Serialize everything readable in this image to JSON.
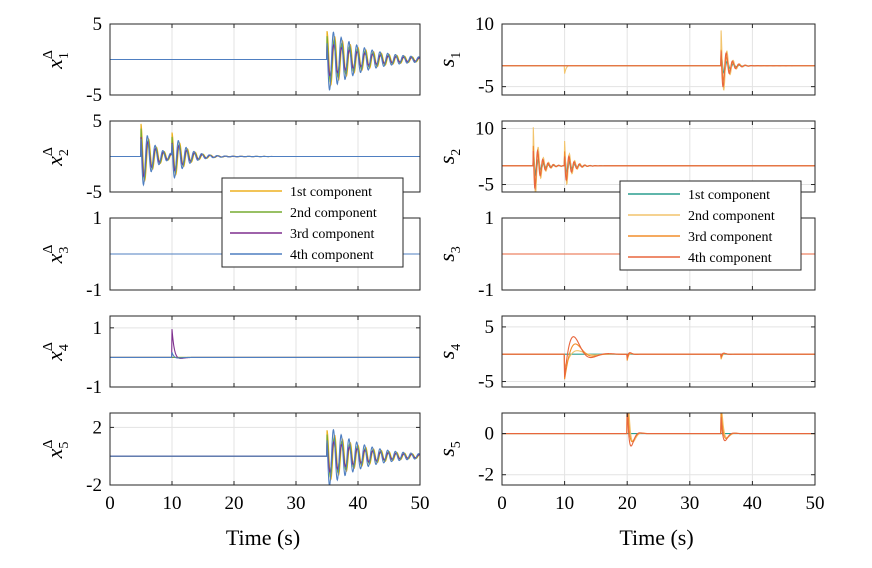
{
  "chart_data": {
    "type": "line",
    "xlabel": "Time (s)",
    "xlim": [
      0,
      50
    ],
    "xticks": [
      0,
      10,
      20,
      30,
      40,
      50
    ],
    "xtick_labels": [
      "0",
      "10",
      "20",
      "30",
      "40",
      "50"
    ],
    "grid": true,
    "colors": {
      "c1": "#EDB120",
      "c2": "#77AC30",
      "c3": "#7E2F8E",
      "c4": "#4F7FC1"
    },
    "colors_right": {
      "c1": "#2A9D8F",
      "c2": "#F2C46D",
      "c3": "#F28E2B",
      "c4": "#E8663D"
    },
    "left": {
      "legend": {
        "position": "center",
        "entries": [
          "1st component",
          "2nd component",
          "3rd component",
          "4th component"
        ]
      },
      "panels": [
        {
          "ylabel_base": "x",
          "ylabel_sup": "Δ",
          "ylabel_sub": "1",
          "ylim": [
            -5,
            5
          ],
          "yticks": [
            5,
            -5
          ],
          "ytick_labels": [
            "5",
            "-5"
          ],
          "events": [
            {
              "t": 35,
              "amps": [
                4.0,
                3.5,
                2.5,
                4.6
              ],
              "decay": 0.17,
              "freq": 0.8
            }
          ]
        },
        {
          "ylabel_base": "x",
          "ylabel_sup": "Δ",
          "ylabel_sub": "2",
          "ylim": [
            -5,
            5
          ],
          "yticks": [
            5,
            -5
          ],
          "ytick_labels": [
            "5",
            "-5"
          ],
          "events": [
            {
              "t": 5,
              "amps": [
                4.6,
                4.2,
                3.6,
                4.9
              ],
              "decay": 0.5,
              "freq": 0.8
            },
            {
              "t": 10,
              "amps": [
                3.0,
                2.6,
                2.2,
                3.2
              ],
              "decay": 0.45,
              "freq": 0.8
            }
          ]
        },
        {
          "ylabel_base": "x",
          "ylabel_sup": "Δ",
          "ylabel_sub": "3",
          "ylim": [
            -1,
            1
          ],
          "yticks": [
            1,
            -1
          ],
          "ytick_labels": [
            "1",
            "-1"
          ],
          "events": []
        },
        {
          "ylabel_base": "x",
          "ylabel_sup": "Δ",
          "ylabel_sub": "4",
          "ylim": [
            -1,
            1.4
          ],
          "yticks": [
            1,
            -1
          ],
          "ytick_labels": [
            "1",
            "-1"
          ],
          "events": [
            {
              "t": 10,
              "amps": [
                0,
                0,
                1.25,
                0.35
              ],
              "decay": 2.0,
              "freq": 0.15
            }
          ]
        },
        {
          "ylabel_base": "x",
          "ylabel_sup": "Δ",
          "ylabel_sub": "5",
          "ylim": [
            -2,
            3
          ],
          "yticks": [
            2,
            -2
          ],
          "ytick_labels": [
            "2",
            "-2"
          ],
          "events": [
            {
              "t": 35,
              "amps": [
                1.8,
                1.6,
                1.2,
                2.2
              ],
              "decay": 0.17,
              "freq": 0.8
            }
          ]
        }
      ]
    },
    "right": {
      "legend": {
        "position": "center",
        "entries": [
          "1st component",
          "2nd component",
          "3rd component",
          "4th component"
        ]
      },
      "panels": [
        {
          "ylabel_base": "s",
          "ylabel_sub": "1",
          "ylim": [
            -7,
            10
          ],
          "yticks": [
            10,
            -5
          ],
          "ytick_labels": [
            "10",
            "-5"
          ],
          "events": [
            {
              "t": 35,
              "amps": [
                3.0,
                9.0,
                5.0,
                7.0
              ],
              "decay": 1.0,
              "freq": 1.0
            },
            {
              "t": 10,
              "amps": [
                0,
                -2.0,
                0,
                0
              ],
              "decay": 3.0,
              "freq": 0.3
            }
          ]
        },
        {
          "ylabel_base": "s",
          "ylabel_sub": "2",
          "ylim": [
            -7,
            12
          ],
          "yticks": [
            10,
            -5
          ],
          "ytick_labels": [
            "10",
            "-5"
          ],
          "events": [
            {
              "t": 5,
              "amps": [
                4.0,
                11.0,
                7.0,
                8.0
              ],
              "decay": 1.0,
              "freq": 1.2
            },
            {
              "t": 10,
              "amps": [
                3.0,
                7.0,
                5.0,
                5.0
              ],
              "decay": 1.0,
              "freq": 1.2
            }
          ]
        },
        {
          "ylabel_base": "s",
          "ylabel_sub": "3",
          "ylim": [
            -1,
            1
          ],
          "yticks": [
            1,
            -1
          ],
          "ytick_labels": [
            "1",
            "-1"
          ],
          "events": []
        },
        {
          "ylabel_base": "s",
          "ylabel_sub": "4",
          "ylim": [
            -6,
            7
          ],
          "yticks": [
            5,
            -5
          ],
          "ytick_labels": [
            "5",
            "-5"
          ],
          "events": [
            {
              "t": 10,
              "amps": [
                0,
                -2.5,
                -6.0,
                -8.5
              ],
              "decay": 0.6,
              "freq": 0.18
            },
            {
              "t": 20,
              "amps": [
                0,
                -1.0,
                -1.5,
                -1.5
              ],
              "decay": 3.0,
              "freq": 0.5
            },
            {
              "t": 35,
              "amps": [
                0,
                -1.0,
                -1.0,
                -1.0
              ],
              "decay": 3.0,
              "freq": 0.5
            }
          ]
        },
        {
          "ylabel_base": "s",
          "ylabel_sub": "5",
          "ylim": [
            -2.5,
            1
          ],
          "yticks": [
            0,
            -2
          ],
          "ytick_labels": [
            "0",
            "-2"
          ],
          "events": [
            {
              "t": 20,
              "amps": [
                0,
                3.5,
                2.5,
                2.8
              ],
              "decay": 2.0,
              "freq": 0.35
            },
            {
              "t": 35,
              "amps": [
                0,
                1.8,
                1.5,
                1.6
              ],
              "decay": 2.0,
              "freq": 0.35
            }
          ]
        }
      ]
    }
  }
}
